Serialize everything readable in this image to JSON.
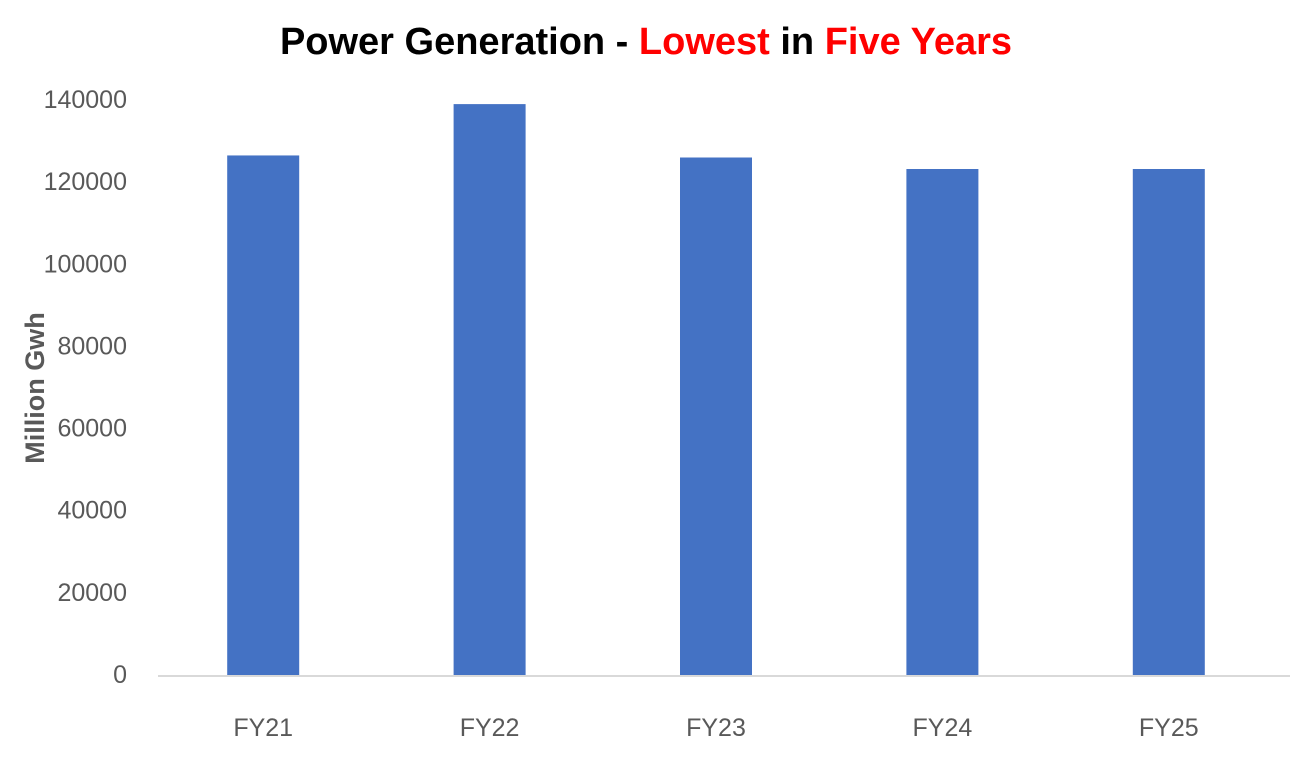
{
  "colors": {
    "bar": "#4472c4",
    "title_text": "#000000",
    "title_highlight": "#ff0000",
    "axis_text": "#595959",
    "axis_line": "#d9d9d9"
  },
  "chart_data": {
    "type": "bar",
    "title_parts": [
      {
        "text": "Power Generation - ",
        "highlight": false
      },
      {
        "text": "Lowest",
        "highlight": true
      },
      {
        "text": " in ",
        "highlight": false
      },
      {
        "text": "Five Years",
        "highlight": true
      }
    ],
    "xlabel": "",
    "ylabel": "Million Gwh",
    "categories": [
      "FY21",
      "FY22",
      "FY23",
      "FY24",
      "FY25"
    ],
    "values": [
      126500,
      139000,
      126000,
      123200,
      123200
    ],
    "ylim": [
      0,
      140000
    ],
    "yticks": [
      "0",
      "20000",
      "40000",
      "60000",
      "80000",
      "100000",
      "120000",
      "140000"
    ],
    "grid": false,
    "legend": "none"
  }
}
